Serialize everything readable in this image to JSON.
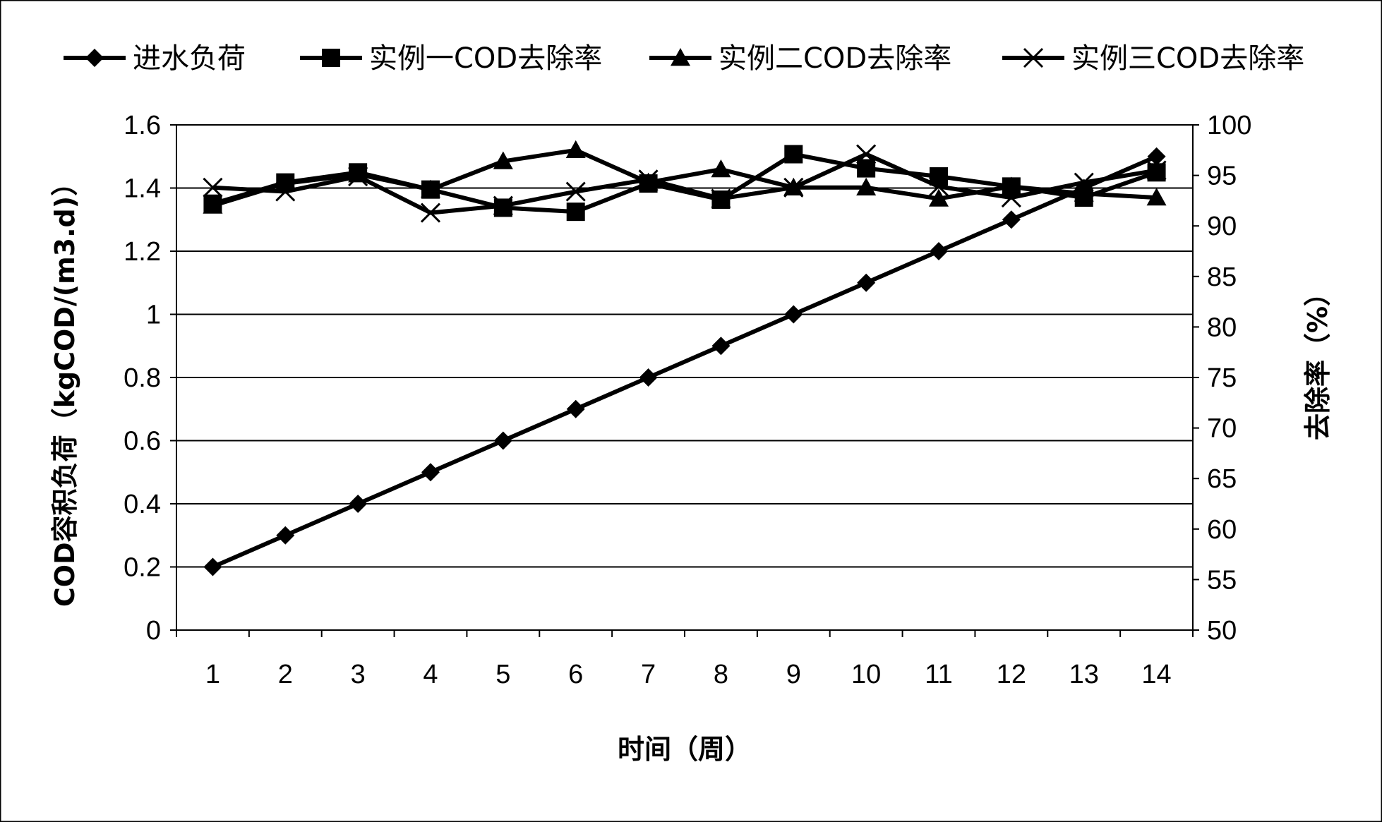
{
  "chart_data": {
    "type": "line",
    "x": [
      1,
      2,
      3,
      4,
      5,
      6,
      7,
      8,
      9,
      10,
      11,
      12,
      13,
      14
    ],
    "xlabel": "时间（周）",
    "ylabel_left": "COD容积负荷（kgCOD/(m3.d)）",
    "ylabel_right": "去除率（%）",
    "ylim_left": [
      0,
      1.6
    ],
    "ylim_right": [
      50,
      100
    ],
    "yticks_left": [
      "0",
      "0.2",
      "0.4",
      "0.6",
      "0.8",
      "1",
      "1.2",
      "1.4",
      "1.6"
    ],
    "yticks_right": [
      "50",
      "55",
      "60",
      "65",
      "70",
      "75",
      "80",
      "85",
      "90",
      "95",
      "100"
    ],
    "grid": true,
    "legend_position": "top",
    "series": [
      {
        "name": "进水负荷",
        "axis": "left",
        "marker": "diamond",
        "values": [
          0.2,
          0.3,
          0.4,
          0.5,
          0.6,
          0.7,
          0.8,
          0.9,
          1.0,
          1.1,
          1.2,
          1.3,
          1.4,
          1.5
        ]
      },
      {
        "name": "实例一COD去除率",
        "axis": "right",
        "marker": "square",
        "values": [
          92.2,
          94.3,
          95.3,
          93.6,
          91.8,
          91.4,
          94.2,
          92.6,
          97.1,
          95.7,
          94.9,
          93.9,
          92.8,
          95.3
        ]
      },
      {
        "name": "实例二COD去除率",
        "axis": "right",
        "marker": "triangle",
        "values": [
          92.0,
          94.2,
          95.1,
          93.6,
          96.4,
          97.5,
          94.3,
          95.6,
          93.8,
          93.8,
          92.7,
          93.9,
          93.2,
          92.8
        ]
      },
      {
        "name": "实例三COD去除率",
        "axis": "right",
        "marker": "x",
        "values": [
          93.8,
          93.4,
          94.9,
          91.3,
          92.0,
          93.4,
          94.6,
          92.7,
          93.8,
          97.1,
          93.9,
          92.8,
          94.3,
          95.5
        ]
      }
    ]
  }
}
